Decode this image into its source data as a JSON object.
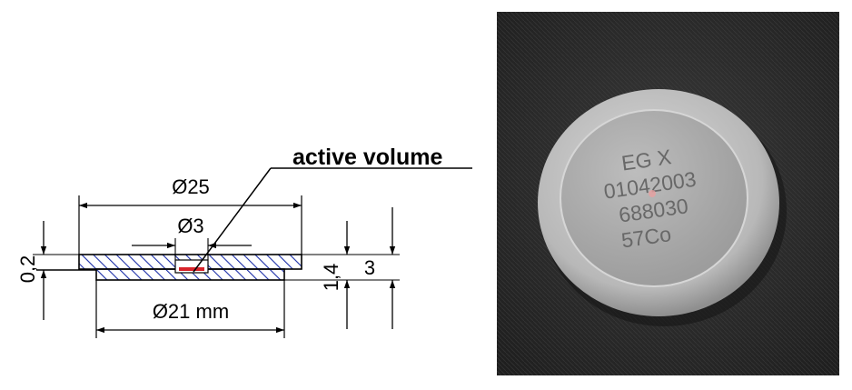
{
  "drawing": {
    "label_active_volume": "active volume",
    "dim_outer_diameter": "Ø25",
    "dim_inner_diameter": "Ø3",
    "dim_base_diameter": "Ø21 mm",
    "dim_gap": "0,2",
    "dim_body_thickness": "1,4",
    "dim_total_height": "3",
    "colors": {
      "hatch": "#1c2fa8",
      "active_volume": "#d8232a",
      "line": "#000000"
    }
  },
  "photo": {
    "engraving_lines": [
      "EG X",
      "01042003",
      "688030",
      "57Co"
    ],
    "colors": {
      "fabric": "#2c2c2c",
      "disc_rim": "#bdbdbd",
      "disc_face": "#a9a9a9",
      "engraving": "#686868"
    }
  }
}
